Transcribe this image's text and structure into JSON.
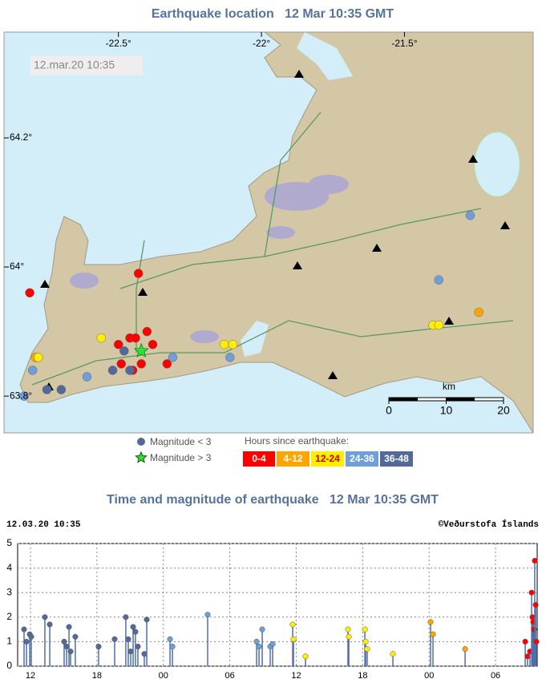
{
  "map": {
    "title": "Earthquake location   12 Mar 10:35 GMT",
    "stamp": "12.mar.20 10:35",
    "lonlim": [
      -22.9,
      -21.05
    ],
    "latlim": [
      63.743,
      64.364
    ],
    "lonticks": [
      {
        "value": -22.5,
        "label": "-22.5°"
      },
      {
        "value": -22,
        "label": "-22°"
      },
      {
        "value": -21.5,
        "label": "-21.5°"
      }
    ],
    "latticks": [
      {
        "value": 64.2,
        "label": "64.2°"
      },
      {
        "value": 64,
        "label": "64°"
      },
      {
        "value": 63.8,
        "label": "63.8°"
      }
    ],
    "scale": {
      "unit": "km",
      "ticks": [
        0,
        10,
        20
      ]
    },
    "legend": {
      "small": "Magnitude < 3",
      "large": "Magnitude > 3",
      "hours_title": "Hours since earthquake:"
    },
    "bins": [
      {
        "label": "0-4",
        "color": "#ff0000",
        "lon": [
          -22.81,
          -22.43,
          -22.5,
          -22.46,
          -22.44,
          -22.38,
          -22.45,
          -22.49,
          -22.42,
          -22.33,
          -22.4
        ],
        "lat": [
          63.96,
          63.99,
          63.88,
          63.89,
          63.89,
          63.88,
          63.84,
          63.85,
          63.85,
          63.85,
          63.9
        ]
      },
      {
        "label": "4-12",
        "color": "#ffa500",
        "lon": [
          -22.79,
          -21.24
        ],
        "lat": [
          63.86,
          63.93
        ]
      },
      {
        "label": "12-24",
        "color": "#ffee00",
        "lon": [
          -22.78,
          -22.56,
          -22.13,
          -22.1,
          -21.4,
          -21.38
        ],
        "lat": [
          63.86,
          63.89,
          63.88,
          63.88,
          63.91,
          63.91
        ]
      },
      {
        "label": "24-36",
        "color": "#6f9fd8",
        "lon": [
          -22.83,
          -22.8,
          -22.61,
          -22.31,
          -21.27,
          -21.38,
          -22.11
        ],
        "lat": [
          63.8,
          63.84,
          63.83,
          63.86,
          64.08,
          63.98,
          63.86
        ]
      },
      {
        "label": "36-48",
        "color": "#55689a",
        "lon": [
          -22.75,
          -22.7,
          -22.52,
          -22.48,
          -22.46
        ],
        "lat": [
          63.81,
          63.81,
          63.84,
          63.87,
          63.84
        ]
      }
    ],
    "star": {
      "lon": -22.42,
      "lat": 63.87,
      "color": "#33dd33"
    }
  },
  "chart_data": {
    "type": "stem",
    "title": "Time and magnitude of earthquake   12 Mar 10:35 GMT",
    "stamp": "12.03.20 10:35",
    "credit": "©Veðurstofa Íslands",
    "xlim": [
      0.26,
      47.18
    ],
    "ylim": [
      0,
      5
    ],
    "yticks": [
      0,
      1,
      2,
      3,
      4,
      5
    ],
    "grid": true,
    "xticks": [
      {
        "value": 1.42,
        "label": "12"
      },
      {
        "value": 7.42,
        "label": "18"
      },
      {
        "value": 13.42,
        "label": "00"
      },
      {
        "value": 19.42,
        "label": "06"
      },
      {
        "value": 25.42,
        "label": "12"
      },
      {
        "value": 31.42,
        "label": "18"
      },
      {
        "value": 37.42,
        "label": "00"
      },
      {
        "value": 43.42,
        "label": "06"
      }
    ],
    "series": [
      {
        "color": "#55689a",
        "x": [
          0.84,
          1.06,
          1.35,
          1.49,
          2.72,
          3.16,
          4.46,
          4.68,
          4.9,
          5.04,
          5.47,
          7.57,
          9.02,
          10.03,
          10.25,
          10.47,
          10.69,
          10.9,
          11.12,
          11.7,
          11.92
        ],
        "values": [
          1.5,
          1.0,
          1.3,
          1.2,
          2.0,
          1.7,
          1.0,
          0.8,
          1.6,
          0.6,
          1.2,
          0.8,
          1.1,
          2.0,
          1.1,
          0.6,
          1.6,
          1.4,
          0.8,
          0.5,
          1.9
        ]
      },
      {
        "color": "#6f9fd8",
        "x": [
          14.02,
          14.24,
          17.42,
          21.84,
          22.06,
          22.35,
          23.07,
          23.29
        ],
        "values": [
          1.1,
          0.8,
          2.1,
          1.0,
          0.8,
          1.5,
          0.8,
          0.9
        ]
      },
      {
        "color": "#ffee00",
        "x": [
          25.1,
          25.17,
          26.26,
          30.09,
          30.17,
          31.62,
          31.69,
          31.83,
          34.15
        ],
        "values": [
          1.7,
          1.1,
          0.4,
          1.5,
          1.2,
          1.5,
          1.0,
          0.7,
          0.5
        ]
      },
      {
        "color": "#ffa500",
        "x": [
          37.55,
          37.77,
          40.67
        ],
        "values": [
          1.8,
          1.3,
          0.7
        ]
      },
      {
        "color": "#ff0000",
        "x": [
          46.1,
          46.31,
          46.53,
          46.68,
          46.75,
          46.82,
          46.89,
          46.96,
          47.04,
          47.11
        ],
        "values": [
          1.0,
          0.4,
          0.6,
          3.0,
          2.0,
          1.8,
          1.5,
          4.3,
          2.5,
          1.0
        ]
      }
    ]
  }
}
